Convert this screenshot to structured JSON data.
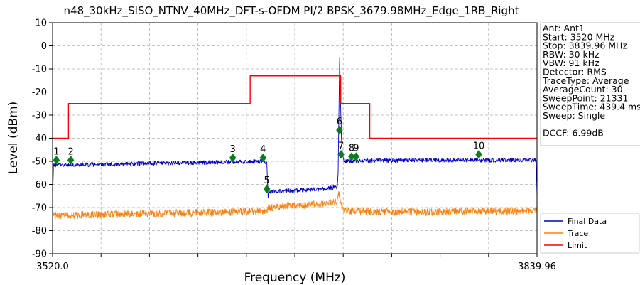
{
  "chart_data": {
    "type": "line",
    "title": "n48_30kHz_SISO_NTNV_40MHz_DFT-s-OFDM PI/2 BPSK_3679.98MHz_Edge_1RB_Right",
    "xlabel": "Frequency (MHz)",
    "ylabel": "Level (dBm)",
    "xlim": [
      3520.0,
      3839.96
    ],
    "ylim": [
      -90,
      10
    ],
    "x_tick_labels": [
      "3520.0",
      "3839.96"
    ],
    "y_ticks": [
      10,
      0,
      -10,
      -20,
      -30,
      -40,
      -50,
      -60,
      -70,
      -80,
      -90
    ],
    "grid": true,
    "legend_position": "bottom-right",
    "series": [
      {
        "name": "Final Data",
        "color": "#0000cc",
        "points": [
          [
            3520.0,
            -68
          ],
          [
            3520.6,
            -51.5
          ],
          [
            3540,
            -51.5
          ],
          [
            3580,
            -51.0
          ],
          [
            3620,
            -50.5
          ],
          [
            3660,
            -50.0
          ],
          [
            3661.5,
            -50.5
          ],
          [
            3662.3,
            -65
          ],
          [
            3663.5,
            -63
          ],
          [
            3700,
            -62
          ],
          [
            3708,
            -61
          ],
          [
            3708.6,
            -55
          ],
          [
            3709.1,
            -30
          ],
          [
            3709.6,
            -5
          ],
          [
            3710.1,
            -22
          ],
          [
            3710.8,
            -40
          ],
          [
            3711.5,
            -47
          ],
          [
            3712.5,
            -50
          ],
          [
            3715,
            -49.8
          ],
          [
            3760,
            -49.5
          ],
          [
            3800,
            -49.5
          ],
          [
            3839.4,
            -49.5
          ],
          [
            3839.96,
            -65
          ]
        ]
      },
      {
        "name": "Trace",
        "color": "#ff7f0e",
        "points": [
          [
            3520.0,
            -73.5
          ],
          [
            3560,
            -73
          ],
          [
            3600,
            -72.5
          ],
          [
            3640,
            -72
          ],
          [
            3661,
            -71.5
          ],
          [
            3662.5,
            -70
          ],
          [
            3680,
            -69
          ],
          [
            3700,
            -68.5
          ],
          [
            3708,
            -67.5
          ],
          [
            3709,
            -63
          ],
          [
            3710,
            -67
          ],
          [
            3711.5,
            -70.5
          ],
          [
            3715,
            -71.5
          ],
          [
            3760,
            -72
          ],
          [
            3800,
            -71.5
          ],
          [
            3839.96,
            -71.5
          ]
        ]
      },
      {
        "name": "Limit",
        "color": "#ff0000",
        "points": [
          [
            3520.0,
            -40
          ],
          [
            3530.5,
            -40
          ],
          [
            3530.5,
            -25
          ],
          [
            3650.5,
            -25
          ],
          [
            3650.5,
            -13
          ],
          [
            3660.5,
            -13
          ],
          [
            3710.3,
            -13
          ],
          [
            3710.3,
            -25
          ],
          [
            3719.5,
            -25
          ],
          [
            3719.5,
            -25
          ],
          [
            3729.5,
            -25
          ],
          [
            3729.5,
            -40
          ],
          [
            3839.96,
            -40
          ]
        ]
      }
    ],
    "markers": [
      {
        "label": "1",
        "x": 3522.5,
        "y": -49.5
      },
      {
        "label": "2",
        "x": 3532.0,
        "y": -49.5
      },
      {
        "label": "3",
        "x": 3639.0,
        "y": -48.5
      },
      {
        "label": "4",
        "x": 3659.0,
        "y": -48.5
      },
      {
        "label": "5",
        "x": 3661.5,
        "y": -62.0
      },
      {
        "label": "6",
        "x": 3709.5,
        "y": -36.5
      },
      {
        "label": "7",
        "x": 3710.5,
        "y": -47.0
      },
      {
        "label": "8",
        "x": 3717.5,
        "y": -48.0
      },
      {
        "label": "9",
        "x": 3720.5,
        "y": -48.0
      },
      {
        "label": "10",
        "x": 3801.5,
        "y": -47.0
      }
    ],
    "info_box": [
      "Ant: Ant1",
      "Start: 3520 MHz",
      "Stop: 3839.96 MHz",
      "RBW: 30 kHz",
      "VBW: 91 kHz",
      "Detector: RMS",
      "TraceType: Average",
      "AverageCount: 30",
      "SweepPoint: 21331",
      "SweepTime: 439.4 ms",
      "Sweep: Single",
      "",
      "DCCF: 6.99dB"
    ]
  }
}
